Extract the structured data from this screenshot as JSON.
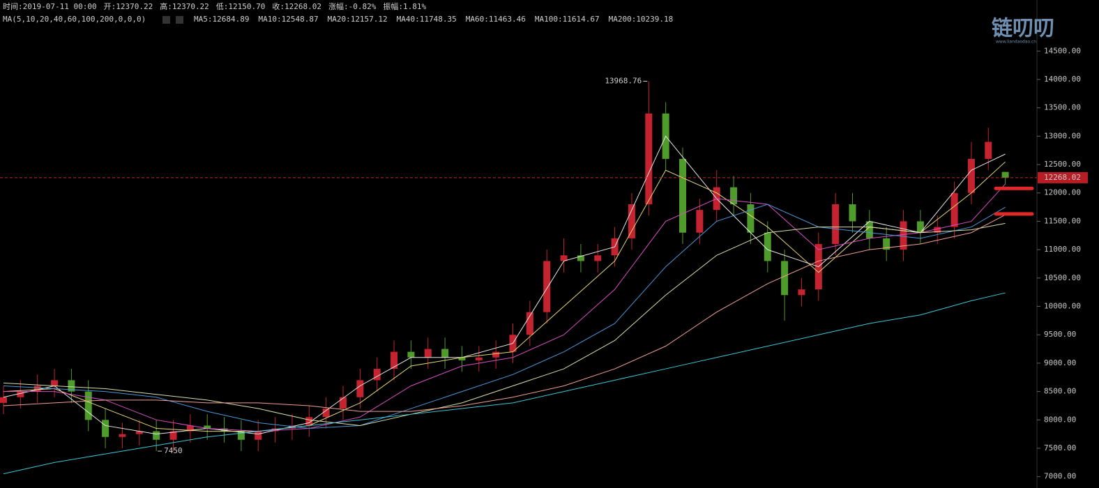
{
  "chart_data": {
    "type": "candlestick",
    "info": [
      "时间:2019-07-11 00:00",
      "开:12370.22",
      "高:12370.22",
      "低:12150.70",
      "收:12268.02",
      "涨幅:",
      "-0.82%",
      "振幅:1.81%"
    ],
    "change_color": "#e0303a",
    "ma_title": "MA(5,10,20,40,60,100,200,0,0,0)",
    "watermark": "链叨叨",
    "watermark_sub": "www.liandaodao.cn",
    "up_color": "#c4232f",
    "down_color": "#4f9b2c",
    "ylim": [
      6800,
      15400
    ],
    "yticks": [
      {
        "value": 7000,
        "label": "7000.00"
      },
      {
        "value": 7500,
        "label": "7500.00"
      },
      {
        "value": 8000,
        "label": "8000.00"
      },
      {
        "value": 8500,
        "label": "8500.00"
      },
      {
        "value": 9000,
        "label": "9000.00"
      },
      {
        "value": 9500,
        "label": "9500.00"
      },
      {
        "value": 10000,
        "label": "10000.00"
      },
      {
        "value": 10500,
        "label": "10500.00"
      },
      {
        "value": 11000,
        "label": "11000.00"
      },
      {
        "value": 11500,
        "label": "11500.00"
      },
      {
        "value": 12000,
        "label": "12000.00"
      },
      {
        "value": 12500,
        "label": "12500.00"
      },
      {
        "value": 13000,
        "label": "13000.00"
      },
      {
        "value": 13500,
        "label": "13500.00"
      },
      {
        "value": 14000,
        "label": "14000.00"
      },
      {
        "value": 14500,
        "label": "14500.00"
      }
    ],
    "last_price": {
      "value": 12268.02,
      "label": "12268.02"
    },
    "high_annotation": {
      "value": 13968.76,
      "label": "13968.76",
      "index": 38
    },
    "low_annotation": {
      "value": 7450,
      "label": "7450",
      "index": 9
    },
    "support_levels": [
      12080,
      11630
    ],
    "support_color": "#e02828",
    "open": [
      8300,
      8400,
      8500,
      8600,
      8700,
      8500,
      8000,
      7700,
      7750,
      7800,
      7650,
      7800,
      7900,
      7850,
      7800,
      7650,
      7800,
      7850,
      7900,
      8050,
      8200,
      8400,
      8700,
      8900,
      9200,
      9100,
      9250,
      9100,
      9050,
      9100,
      9200,
      9500,
      9900,
      10800,
      10900,
      10800,
      10900,
      11200,
      11800,
      13400,
      12600,
      11300,
      11700,
      12100,
      11800,
      11300,
      10800,
      10200,
      10300,
      11100,
      11800,
      11500,
      11200,
      11000,
      11500,
      11300,
      11400,
      12000,
      12600,
      12370.22
    ],
    "high": [
      8600,
      8700,
      8800,
      8900,
      8900,
      8700,
      8200,
      7950,
      8000,
      8000,
      8000,
      8100,
      8100,
      8050,
      8000,
      8000,
      8050,
      8100,
      8250,
      8400,
      8600,
      8900,
      9100,
      9400,
      9400,
      9450,
      9450,
      9300,
      9300,
      9400,
      9700,
      10100,
      11000,
      11200,
      11100,
      11100,
      11400,
      12000,
      13968.76,
      13600,
      12800,
      11900,
      12400,
      12300,
      12000,
      11500,
      11000,
      10500,
      11300,
      12000,
      12000,
      11700,
      11400,
      11700,
      11700,
      11600,
      12200,
      12900,
      13150,
      12370.22
    ],
    "low": [
      8100,
      8200,
      8300,
      8400,
      8300,
      7800,
      7500,
      7500,
      7550,
      7450,
      7450,
      7600,
      7650,
      7600,
      7450,
      7450,
      7600,
      7650,
      7700,
      7850,
      8000,
      8200,
      8500,
      8700,
      8900,
      8900,
      8900,
      8850,
      8850,
      8900,
      9000,
      9300,
      9700,
      10600,
      10600,
      10600,
      10700,
      11000,
      11600,
      12400,
      11100,
      11100,
      11500,
      11600,
      11100,
      10600,
      9750,
      10000,
      10100,
      10900,
      11300,
      11000,
      10800,
      10800,
      11100,
      11100,
      11200,
      11800,
      12400,
      12150.7
    ],
    "close": [
      8400,
      8500,
      8600,
      8700,
      8500,
      8000,
      7700,
      7750,
      7800,
      7650,
      7800,
      7900,
      7850,
      7800,
      7650,
      7800,
      7850,
      7900,
      8050,
      8200,
      8400,
      8700,
      8900,
      9200,
      9100,
      9250,
      9100,
      9050,
      9100,
      9200,
      9500,
      9900,
      10800,
      10900,
      10800,
      10900,
      11200,
      11800,
      13400,
      12600,
      11300,
      11700,
      12100,
      11800,
      11300,
      10800,
      10200,
      10300,
      11100,
      11800,
      11500,
      11200,
      11000,
      11500,
      11300,
      11400,
      12000,
      12600,
      12900,
      12268.02
    ],
    "series": [
      {
        "name": "MA5",
        "legend_label": "MA5:12684.89",
        "color": "#e8e8e8",
        "x": [
          0,
          3,
          6,
          9,
          12,
          15,
          18,
          21,
          24,
          27,
          30,
          33,
          36,
          39,
          42,
          45,
          48,
          51,
          54,
          57,
          59
        ],
        "values": [
          8400,
          8600,
          7900,
          7750,
          7850,
          7750,
          7950,
          8600,
          9100,
          9100,
          9350,
          10800,
          11050,
          13000,
          11900,
          11000,
          10700,
          11500,
          11300,
          12400,
          12684.89
        ]
      },
      {
        "name": "MA10",
        "legend_label": "MA10:12548.87",
        "color": "#e8d878",
        "x": [
          0,
          3,
          6,
          9,
          12,
          15,
          18,
          21,
          24,
          27,
          30,
          33,
          36,
          39,
          42,
          45,
          48,
          51,
          54,
          57,
          59
        ],
        "values": [
          8500,
          8550,
          8200,
          7850,
          7800,
          7800,
          7900,
          8300,
          8950,
          9100,
          9200,
          10000,
          10800,
          12400,
          12000,
          11400,
          10600,
          11400,
          11300,
          12000,
          12548.87
        ]
      },
      {
        "name": "MA20",
        "legend_label": "MA20:12157.12",
        "color": "#d84fc4",
        "x": [
          0,
          3,
          6,
          9,
          12,
          15,
          18,
          21,
          24,
          27,
          30,
          33,
          36,
          39,
          42,
          45,
          48,
          51,
          54,
          57,
          59
        ],
        "values": [
          8500,
          8500,
          8350,
          8000,
          7850,
          7800,
          7850,
          8050,
          8600,
          8950,
          9100,
          9500,
          10300,
          11500,
          11900,
          11800,
          11000,
          11200,
          11300,
          11500,
          12157.12
        ]
      },
      {
        "name": "MA40",
        "legend_label": "MA40:11748.35",
        "color": "#4a98d8",
        "x": [
          0,
          3,
          6,
          9,
          12,
          15,
          18,
          21,
          24,
          27,
          30,
          33,
          36,
          39,
          42,
          45,
          48,
          51,
          54,
          57,
          59
        ],
        "values": [
          8600,
          8550,
          8500,
          8400,
          8150,
          7950,
          7850,
          7900,
          8200,
          8500,
          8800,
          9200,
          9700,
          10700,
          11500,
          11800,
          11400,
          11300,
          11200,
          11400,
          11748.35
        ]
      },
      {
        "name": "MA60",
        "legend_label": "MA60:11463.46",
        "color": "#d8e0a8",
        "x": [
          0,
          3,
          6,
          9,
          12,
          15,
          18,
          21,
          24,
          27,
          30,
          33,
          36,
          39,
          42,
          45,
          48,
          51,
          54,
          57,
          59
        ],
        "values": [
          8650,
          8600,
          8550,
          8450,
          8350,
          8200,
          8000,
          7900,
          8100,
          8300,
          8600,
          8900,
          9400,
          10200,
          10900,
          11300,
          11400,
          11400,
          11300,
          11350,
          11463.46
        ]
      },
      {
        "name": "MA100",
        "legend_label": "MA100:11614.67",
        "color": "#f0a098",
        "x": [
          0,
          3,
          6,
          9,
          12,
          15,
          18,
          21,
          24,
          27,
          30,
          33,
          36,
          39,
          42,
          45,
          48,
          51,
          54,
          57,
          59
        ],
        "values": [
          8250,
          8300,
          8350,
          8350,
          8300,
          8300,
          8250,
          8150,
          8150,
          8250,
          8400,
          8600,
          8900,
          9300,
          9900,
          10400,
          10800,
          11000,
          11100,
          11300,
          11614.67
        ]
      },
      {
        "name": "MA200",
        "legend_label": "MA200:10239.18",
        "color": "#3ec8d8",
        "x": [
          0,
          3,
          6,
          9,
          12,
          15,
          18,
          21,
          24,
          27,
          30,
          33,
          36,
          39,
          42,
          45,
          48,
          51,
          54,
          57,
          59
        ],
        "values": [
          7050,
          7250,
          7400,
          7550,
          7700,
          7800,
          7900,
          8000,
          8100,
          8200,
          8300,
          8500,
          8700,
          8900,
          9100,
          9300,
          9500,
          9700,
          9850,
          10100,
          10239.18
        ]
      }
    ]
  }
}
